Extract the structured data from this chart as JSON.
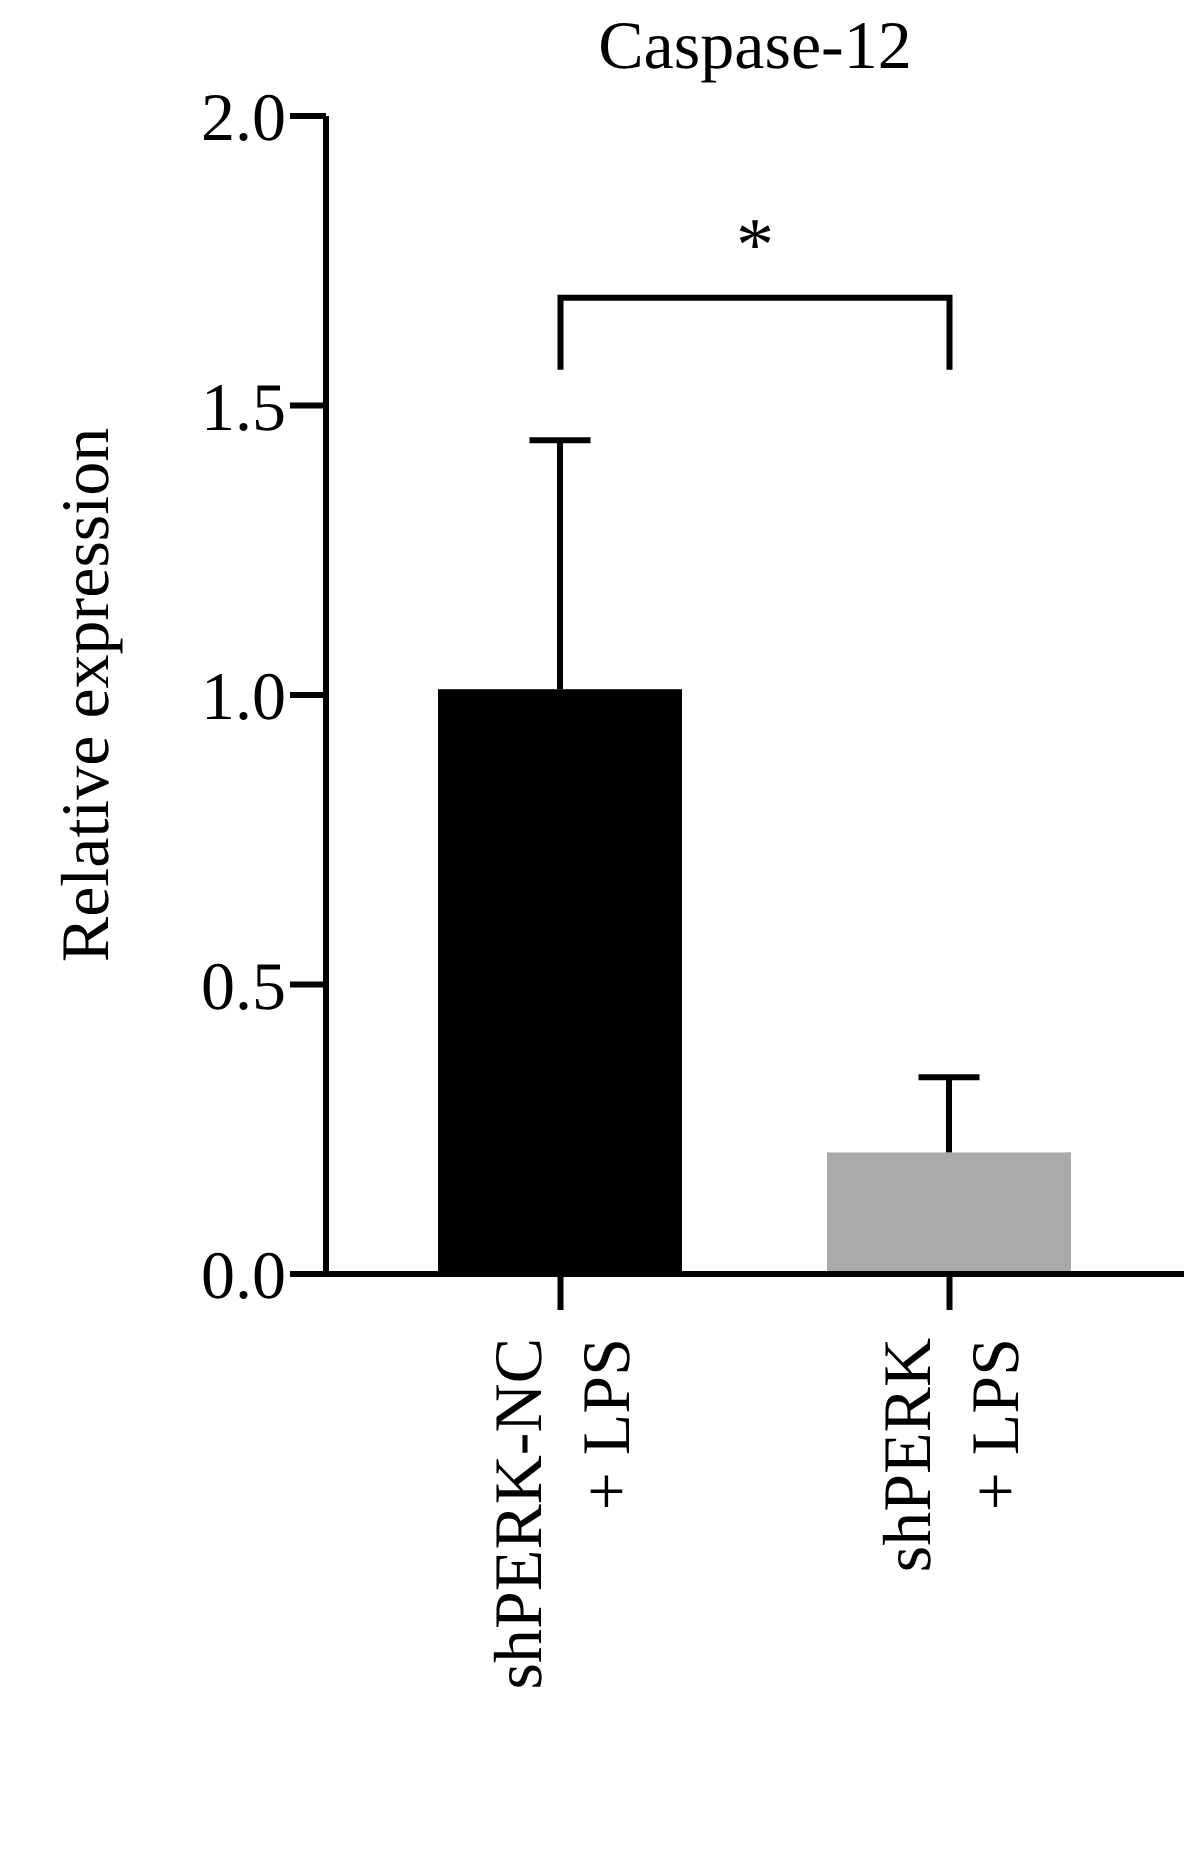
{
  "chart_data": {
    "type": "bar",
    "title": "Caspase-12",
    "ylabel": "Relative expression",
    "categories": [
      "shPERK-NC\n+ LPS",
      "shPERK\n+ LPS"
    ],
    "values": [
      1.01,
      0.21
    ],
    "colors": [
      "#000000",
      "#aaaaaa"
    ],
    "errors": [
      [
        1.01,
        1.44
      ],
      [
        0.21,
        0.34
      ]
    ],
    "ylim": [
      0,
      2.0
    ],
    "yticks": [
      {
        "value": 0,
        "label": "0.0"
      },
      {
        "value": 0.5,
        "label": "0.5"
      },
      {
        "value": 1.0,
        "label": "1.0"
      },
      {
        "value": 1.5,
        "label": "1.5"
      },
      {
        "value": 2.0,
        "label": "2.0"
      }
    ],
    "grid": false,
    "annotations": [
      "*"
    ]
  }
}
